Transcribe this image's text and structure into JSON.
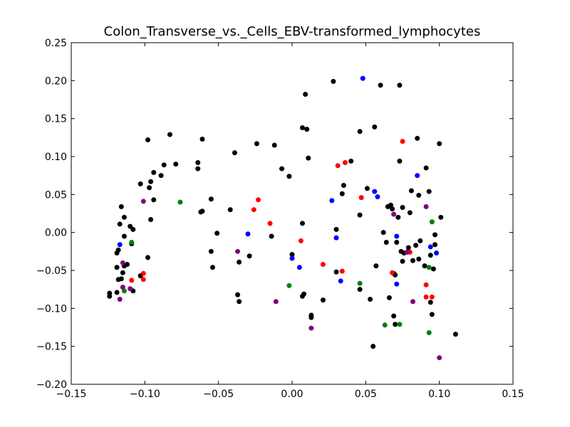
{
  "chart_data": {
    "type": "scatter",
    "title": "Colon_Transverse_vs._Cells_EBV-transformed_lymphocytes",
    "xlabel": "",
    "ylabel": "",
    "xlim": [
      -0.15,
      0.15
    ],
    "ylim": [
      -0.2,
      0.25
    ],
    "xticks": [
      -0.15,
      -0.1,
      -0.05,
      0.0,
      0.05,
      0.1,
      0.15
    ],
    "yticks": [
      -0.2,
      -0.15,
      -0.1,
      -0.05,
      0.0,
      0.05,
      0.1,
      0.15,
      0.2,
      0.25
    ],
    "xtick_labels": [
      "−0.15",
      "−0.10",
      "−0.05",
      "0.00",
      "0.05",
      "0.10",
      "0.15"
    ],
    "ytick_labels": [
      "−0.20",
      "−0.15",
      "−0.10",
      "−0.05",
      "0.00",
      "0.05",
      "0.10",
      "0.15",
      "0.20",
      "0.25"
    ],
    "grid": false,
    "series": [
      {
        "color": "#000000",
        "points": [
          [
            -0.124,
            -0.08
          ],
          [
            -0.124,
            -0.084
          ],
          [
            -0.119,
            -0.046
          ],
          [
            -0.119,
            -0.079
          ],
          [
            -0.119,
            -0.027
          ],
          [
            -0.118,
            -0.023
          ],
          [
            -0.118,
            -0.062
          ],
          [
            -0.117,
            0.011
          ],
          [
            -0.116,
            0.034
          ],
          [
            -0.116,
            -0.061
          ],
          [
            -0.115,
            -0.053
          ],
          [
            -0.114,
            -0.044
          ],
          [
            -0.114,
            0.02
          ],
          [
            -0.114,
            -0.005
          ],
          [
            -0.112,
            -0.042
          ],
          [
            -0.11,
            0.008
          ],
          [
            -0.109,
            -0.015
          ],
          [
            -0.108,
            -0.077
          ],
          [
            -0.108,
            0.004
          ],
          [
            -0.103,
            0.064
          ],
          [
            -0.103,
            -0.057
          ],
          [
            -0.098,
            0.122
          ],
          [
            -0.098,
            -0.033
          ],
          [
            -0.097,
            0.059
          ],
          [
            -0.096,
            0.067
          ],
          [
            -0.096,
            0.017
          ],
          [
            -0.094,
            0.079
          ],
          [
            -0.094,
            0.043
          ],
          [
            -0.089,
            0.075
          ],
          [
            -0.087,
            0.089
          ],
          [
            -0.083,
            0.129
          ],
          [
            -0.079,
            0.09
          ],
          [
            -0.064,
            0.084
          ],
          [
            -0.064,
            0.092
          ],
          [
            -0.062,
            0.027
          ],
          [
            -0.061,
            0.123
          ],
          [
            -0.061,
            0.028
          ],
          [
            -0.055,
            -0.025
          ],
          [
            -0.055,
            0.044
          ],
          [
            -0.054,
            -0.046
          ],
          [
            -0.051,
            -0.001
          ],
          [
            -0.042,
            0.03
          ],
          [
            -0.039,
            0.105
          ],
          [
            -0.037,
            -0.082
          ],
          [
            -0.036,
            -0.039
          ],
          [
            -0.036,
            -0.091
          ],
          [
            -0.029,
            -0.031
          ],
          [
            -0.024,
            0.117
          ],
          [
            -0.014,
            -0.005
          ],
          [
            -0.012,
            0.115
          ],
          [
            -0.007,
            0.084
          ],
          [
            -0.002,
            0.074
          ],
          [
            0.0,
            -0.029
          ],
          [
            0.0,
            -0.034
          ],
          [
            0.007,
            0.012
          ],
          [
            0.007,
            0.138
          ],
          [
            0.007,
            -0.084
          ],
          [
            0.008,
            -0.081
          ],
          [
            0.009,
            0.182
          ],
          [
            0.01,
            0.136
          ],
          [
            0.011,
            0.098
          ],
          [
            0.013,
            -0.109
          ],
          [
            0.013,
            -0.112
          ],
          [
            0.021,
            -0.089
          ],
          [
            0.028,
            0.199
          ],
          [
            0.03,
            0.004
          ],
          [
            0.03,
            -0.052
          ],
          [
            0.034,
            0.051
          ],
          [
            0.035,
            0.062
          ],
          [
            0.04,
            0.094
          ],
          [
            0.046,
            0.133
          ],
          [
            0.046,
            0.023
          ],
          [
            0.046,
            -0.075
          ],
          [
            0.051,
            0.058
          ],
          [
            0.053,
            -0.088
          ],
          [
            0.055,
            -0.15
          ],
          [
            0.056,
            0.139
          ],
          [
            0.057,
            -0.044
          ],
          [
            0.06,
            0.194
          ],
          [
            0.062,
            0.0
          ],
          [
            0.064,
            -0.013
          ],
          [
            0.065,
            0.034
          ],
          [
            0.066,
            -0.086
          ],
          [
            0.067,
            0.036
          ],
          [
            0.068,
            0.031
          ],
          [
            0.069,
            -0.11
          ],
          [
            0.069,
            -0.054
          ],
          [
            0.07,
            -0.056
          ],
          [
            0.07,
            -0.121
          ],
          [
            0.071,
            -0.013
          ],
          [
            0.072,
            0.02
          ],
          [
            0.073,
            0.194
          ],
          [
            0.073,
            0.094
          ],
          [
            0.074,
            -0.025
          ],
          [
            0.075,
            0.033
          ],
          [
            0.075,
            -0.038
          ],
          [
            0.076,
            -0.027
          ],
          [
            0.079,
            -0.02
          ],
          [
            0.08,
            0.026
          ],
          [
            0.081,
            0.055
          ],
          [
            0.082,
            -0.037
          ],
          [
            0.084,
            -0.017
          ],
          [
            0.085,
            0.124
          ],
          [
            0.086,
            0.049
          ],
          [
            0.086,
            -0.035
          ],
          [
            0.087,
            -0.011
          ],
          [
            0.09,
            -0.044
          ],
          [
            0.091,
            0.085
          ],
          [
            0.093,
            0.054
          ],
          [
            0.094,
            -0.092
          ],
          [
            0.094,
            -0.03
          ],
          [
            0.095,
            -0.108
          ],
          [
            0.096,
            -0.048
          ],
          [
            0.097,
            -0.003
          ],
          [
            0.097,
            -0.016
          ],
          [
            0.1,
            0.117
          ],
          [
            0.101,
            0.02
          ],
          [
            0.111,
            -0.134
          ]
        ]
      },
      {
        "color": "#0000ff",
        "points": [
          [
            -0.117,
            -0.016
          ],
          [
            -0.03,
            -0.002
          ],
          [
            0.0,
            -0.034
          ],
          [
            0.005,
            -0.046
          ],
          [
            0.027,
            0.042
          ],
          [
            0.03,
            -0.007
          ],
          [
            0.033,
            -0.064
          ],
          [
            0.048,
            0.203
          ],
          [
            0.056,
            0.054
          ],
          [
            0.058,
            0.047
          ],
          [
            0.071,
            -0.005
          ],
          [
            0.071,
            -0.068
          ],
          [
            0.085,
            0.075
          ],
          [
            0.094,
            -0.019
          ],
          [
            0.098,
            -0.027
          ]
        ]
      },
      {
        "color": "#ff0000",
        "points": [
          [
            -0.109,
            -0.063
          ],
          [
            -0.101,
            -0.054
          ],
          [
            -0.101,
            -0.062
          ],
          [
            -0.026,
            0.03
          ],
          [
            -0.023,
            0.043
          ],
          [
            -0.015,
            0.012
          ],
          [
            0.006,
            -0.011
          ],
          [
            0.021,
            -0.042
          ],
          [
            0.031,
            0.088
          ],
          [
            0.034,
            -0.051
          ],
          [
            0.036,
            0.092
          ],
          [
            0.047,
            0.046
          ],
          [
            0.068,
            -0.053
          ],
          [
            0.075,
            0.12
          ],
          [
            0.08,
            -0.026
          ],
          [
            0.091,
            -0.069
          ],
          [
            0.091,
            -0.085
          ],
          [
            0.095,
            -0.085
          ]
        ]
      },
      {
        "color": "#008000",
        "points": [
          [
            -0.114,
            -0.077
          ],
          [
            -0.109,
            -0.013
          ],
          [
            -0.076,
            0.04
          ],
          [
            -0.002,
            -0.07
          ],
          [
            0.046,
            -0.067
          ],
          [
            0.063,
            -0.122
          ],
          [
            0.073,
            -0.121
          ],
          [
            0.093,
            -0.132
          ],
          [
            0.093,
            -0.046
          ],
          [
            0.095,
            0.014
          ]
        ]
      },
      {
        "color": "#800080",
        "points": [
          [
            -0.117,
            -0.088
          ],
          [
            -0.115,
            -0.04
          ],
          [
            -0.115,
            -0.072
          ],
          [
            -0.11,
            -0.074
          ],
          [
            -0.101,
            0.041
          ],
          [
            -0.037,
            -0.025
          ],
          [
            -0.011,
            -0.091
          ],
          [
            0.013,
            -0.126
          ],
          [
            0.069,
            0.024
          ],
          [
            0.078,
            -0.026
          ],
          [
            0.082,
            -0.091
          ],
          [
            0.091,
            0.034
          ],
          [
            0.1,
            -0.165
          ]
        ]
      }
    ]
  }
}
